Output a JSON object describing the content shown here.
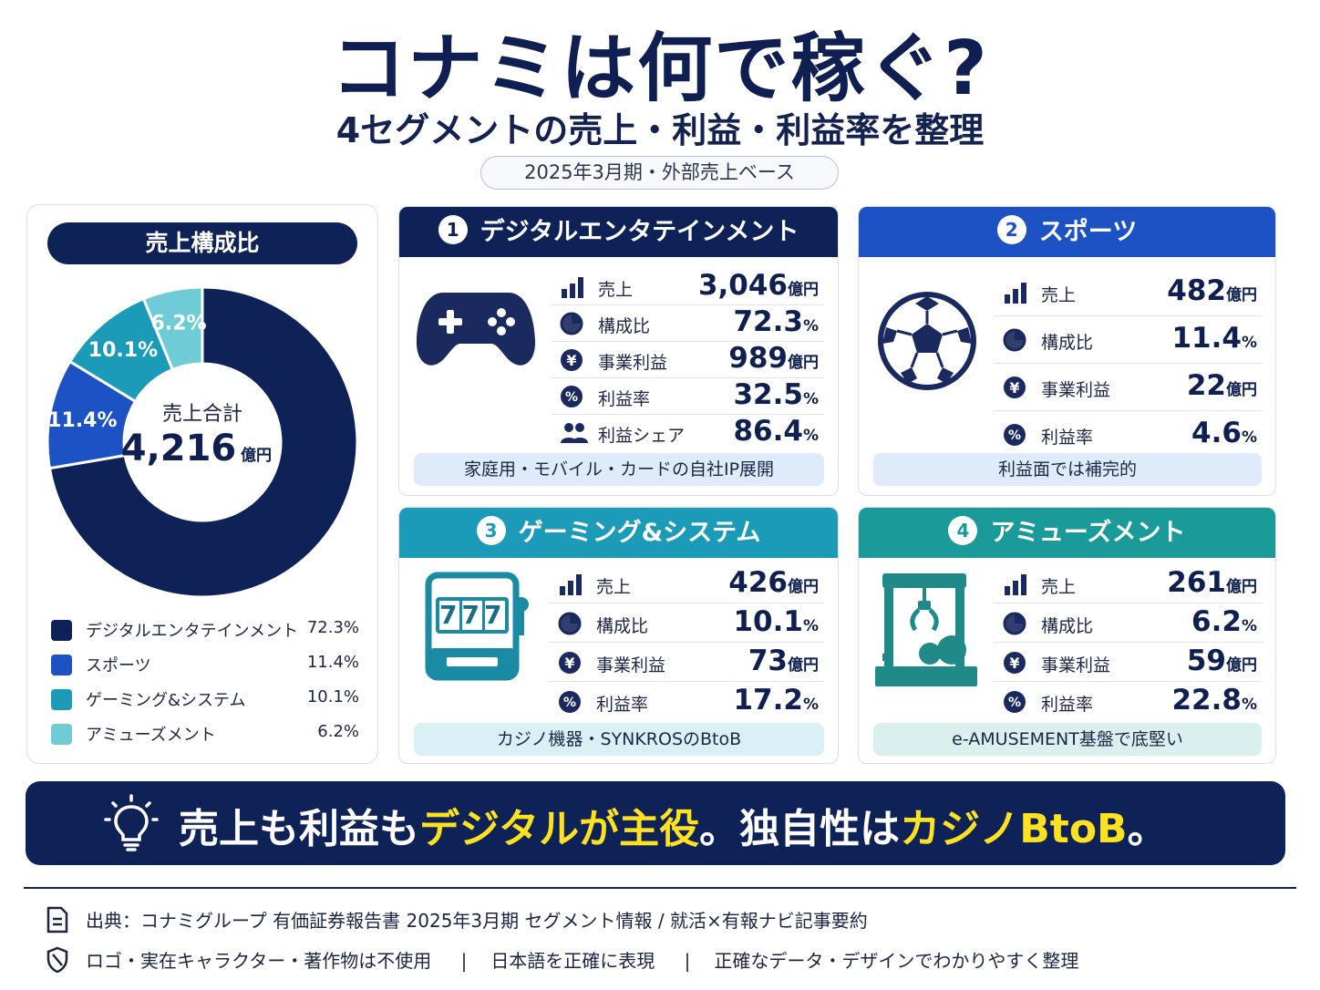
{
  "header": {
    "title": "コナミは何で稼ぐ?",
    "subtitle": "4セグメントの売上・利益・利益率を整理",
    "period": "2025年3月期・外部売上ベース"
  },
  "colors": {
    "navy": "#0f2257",
    "blue": "#1d52c4",
    "teal": "#1b9bb8",
    "light_teal": "#6fcbd6",
    "green_teal": "#1a9a98",
    "yellow": "#ffe21f"
  },
  "composition": {
    "title": "売上構成比",
    "center_label": "売上合計",
    "center_value": "4,216",
    "center_unit": "億円"
  },
  "chart_data": {
    "type": "pie",
    "title": "売上構成比",
    "categories": [
      "デジタルエンタテインメント",
      "スポーツ",
      "ゲーミング&システム",
      "アミューズメント"
    ],
    "values": [
      72.3,
      11.4,
      10.1,
      6.2
    ],
    "labels": [
      "72.3%",
      "11.4%",
      "10.1%",
      "6.2%"
    ],
    "colors": [
      "#0f2257",
      "#1d52c4",
      "#1b9bb8",
      "#6fcbd6"
    ],
    "legend": "bottom"
  },
  "segments": [
    {
      "number": "1",
      "name": "デジタルエンタテインメント",
      "icon": "gamepad-icon",
      "metrics": [
        {
          "icon": "bar-chart-icon",
          "label": "売上",
          "value": "3,046",
          "unit": "億円"
        },
        {
          "icon": "pie-icon",
          "label": "構成比",
          "value": "72.3",
          "unit": "%"
        },
        {
          "icon": "yen-icon",
          "label": "事業利益",
          "value": "989",
          "unit": "億円"
        },
        {
          "icon": "percent-icon",
          "label": "利益率",
          "value": "32.5",
          "unit": "%"
        },
        {
          "icon": "people-icon",
          "label": "利益シェア",
          "value": "86.4",
          "unit": "%"
        }
      ],
      "note": "家庭用・モバイル・カードの自社IP展開"
    },
    {
      "number": "2",
      "name": "スポーツ",
      "icon": "soccer-ball-icon",
      "metrics": [
        {
          "icon": "bar-chart-icon",
          "label": "売上",
          "value": "482",
          "unit": "億円"
        },
        {
          "icon": "pie-icon",
          "label": "構成比",
          "value": "11.4",
          "unit": "%"
        },
        {
          "icon": "yen-icon",
          "label": "事業利益",
          "value": "22",
          "unit": "億円"
        },
        {
          "icon": "percent-icon",
          "label": "利益率",
          "value": "4.6",
          "unit": "%"
        }
      ],
      "note": "利益面では補完的"
    },
    {
      "number": "3",
      "name": "ゲーミング&システム",
      "icon": "slot-machine-icon",
      "slot_digits": "777",
      "metrics": [
        {
          "icon": "bar-chart-icon",
          "label": "売上",
          "value": "426",
          "unit": "億円"
        },
        {
          "icon": "pie-icon",
          "label": "構成比",
          "value": "10.1",
          "unit": "%"
        },
        {
          "icon": "yen-icon",
          "label": "事業利益",
          "value": "73",
          "unit": "億円"
        },
        {
          "icon": "percent-icon",
          "label": "利益率",
          "value": "17.2",
          "unit": "%"
        }
      ],
      "note": "カジノ機器・SYNKROSのBtoB"
    },
    {
      "number": "4",
      "name": "アミューズメント",
      "icon": "claw-machine-icon",
      "metrics": [
        {
          "icon": "bar-chart-icon",
          "label": "売上",
          "value": "261",
          "unit": "億円"
        },
        {
          "icon": "pie-icon",
          "label": "構成比",
          "value": "6.2",
          "unit": "%"
        },
        {
          "icon": "yen-icon",
          "label": "事業利益",
          "value": "59",
          "unit": "億円"
        },
        {
          "icon": "percent-icon",
          "label": "利益率",
          "value": "22.8",
          "unit": "%"
        }
      ],
      "note": "e-AMUSEMENT基盤で底堅い"
    }
  ],
  "banner": {
    "part1": "売上も利益も",
    "part2": "デジタルが主役",
    "part3": "。独自性は",
    "part4": "カジノBtoB",
    "part5": "。"
  },
  "footer": {
    "source": "出典：コナミグループ 有価証券報告書 2025年3月期 セグメント情報 / 就活×有報ナビ記事要約",
    "note1": "ロゴ・実在キャラクター・著作物は不使用",
    "sep": "|",
    "note2": "日本語を正確に表現",
    "note3": "正確なデータ・デザインでわかりやすく整理"
  }
}
